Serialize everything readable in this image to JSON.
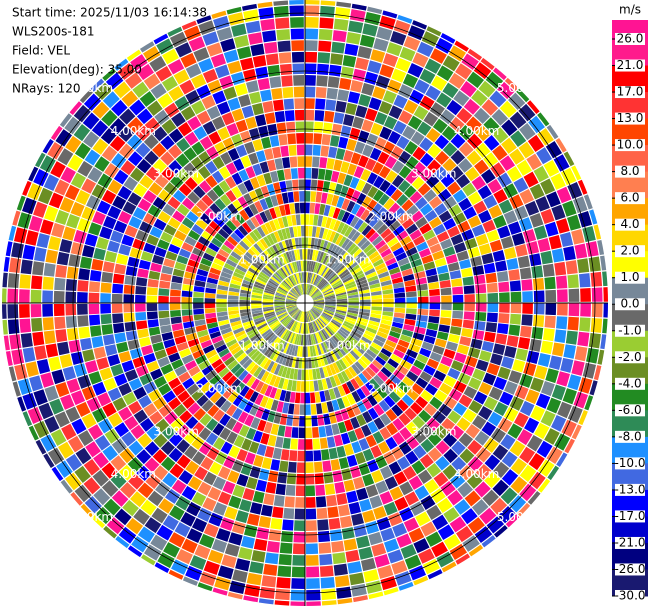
{
  "header": {
    "lines": [
      "Start time: 2025/11/03 16:14:38",
      "WLS200s-181",
      "Field: VEL",
      "Elevation(deg): 35.00",
      "NRays: 120"
    ]
  },
  "chart_data": {
    "type": "ppi",
    "rings": [
      {
        "value": 1,
        "label": "1.00km"
      },
      {
        "value": 2,
        "label": "2.00km"
      },
      {
        "value": 3,
        "label": "3.00km"
      },
      {
        "value": 4,
        "label": "4.00km"
      },
      {
        "value": 5,
        "label": "5.00km"
      }
    ],
    "colorbar": {
      "unit": "m/s",
      "ticks": [
        {
          "value": 26,
          "label": "26.0"
        },
        {
          "value": 21,
          "label": "21.0"
        },
        {
          "value": 17,
          "label": "17.0"
        },
        {
          "value": 13,
          "label": "13.0"
        },
        {
          "value": 10,
          "label": "10.0"
        },
        {
          "value": 8,
          "label": "8.0"
        },
        {
          "value": 6,
          "label": "6.0"
        },
        {
          "value": 4,
          "label": "4.0"
        },
        {
          "value": 2,
          "label": "2.0"
        },
        {
          "value": 1,
          "label": "1.0"
        },
        {
          "value": 0,
          "label": "0.0"
        },
        {
          "value": -1,
          "label": "-1.0"
        },
        {
          "value": -2,
          "label": "-2.0"
        },
        {
          "value": -4,
          "label": "-4.0"
        },
        {
          "value": -6,
          "label": "-6.0"
        },
        {
          "value": -8,
          "label": "-8.0"
        },
        {
          "value": -10,
          "label": "-10.0"
        },
        {
          "value": -13,
          "label": "-13.0"
        },
        {
          "value": -17,
          "label": "-17.0"
        },
        {
          "value": -21,
          "label": "-21.0"
        },
        {
          "value": -26,
          "label": "-26.0"
        },
        {
          "value": -30,
          "label": "-30.0"
        }
      ],
      "colors": [
        "#ff1493",
        "#ff1a8c",
        "#ff0000",
        "#ff3333",
        "#ff4500",
        "#ff6347",
        "#ff7f50",
        "#ffa500",
        "#ffd700",
        "#ffff00",
        "#778899",
        "#696969",
        "#9acd32",
        "#6b8e23",
        "#228b22",
        "#2e8b57",
        "#1e90ff",
        "#4169e1",
        "#0000ff",
        "#0000cd",
        "#000080",
        "#191970"
      ]
    }
  }
}
